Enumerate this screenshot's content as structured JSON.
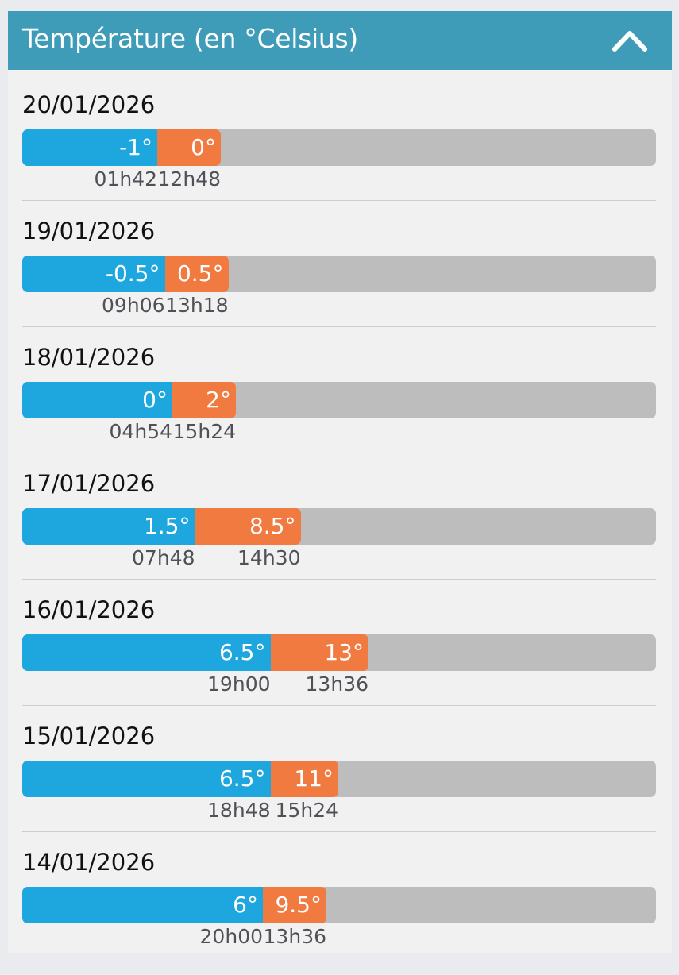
{
  "header": {
    "title": "Température (en °Celsius)",
    "collapse_icon": "chevron-up-icon"
  },
  "scale": {
    "min": -1,
    "max": 41
  },
  "colors": {
    "header_bg": "#3f9cb9",
    "min_bar": "#1ea6de",
    "max_bar": "#f07a3f",
    "track": "#bdbdbd"
  },
  "days": [
    {
      "date": "20/01/2026",
      "min": -1,
      "min_label": "-1°",
      "min_time": "01h42",
      "max": 0,
      "max_label": "0°",
      "max_time": "12h48"
    },
    {
      "date": "19/01/2026",
      "min": -0.5,
      "min_label": "-0.5°",
      "min_time": "09h06",
      "max": 0.5,
      "max_label": "0.5°",
      "max_time": "13h18"
    },
    {
      "date": "18/01/2026",
      "min": 0,
      "min_label": "0°",
      "min_time": "04h54",
      "max": 2,
      "max_label": "2°",
      "max_time": "15h24"
    },
    {
      "date": "17/01/2026",
      "min": 1.5,
      "min_label": "1.5°",
      "min_time": "07h48",
      "max": 8.5,
      "max_label": "8.5°",
      "max_time": "14h30"
    },
    {
      "date": "16/01/2026",
      "min": 6.5,
      "min_label": "6.5°",
      "min_time": "19h00",
      "max": 13,
      "max_label": "13°",
      "max_time": "13h36"
    },
    {
      "date": "15/01/2026",
      "min": 6.5,
      "min_label": "6.5°",
      "min_time": "18h48",
      "max": 11,
      "max_label": "11°",
      "max_time": "15h24"
    },
    {
      "date": "14/01/2026",
      "min": 6,
      "min_label": "6°",
      "min_time": "20h00",
      "max": 9.5,
      "max_label": "9.5°",
      "max_time": "13h36"
    }
  ]
}
